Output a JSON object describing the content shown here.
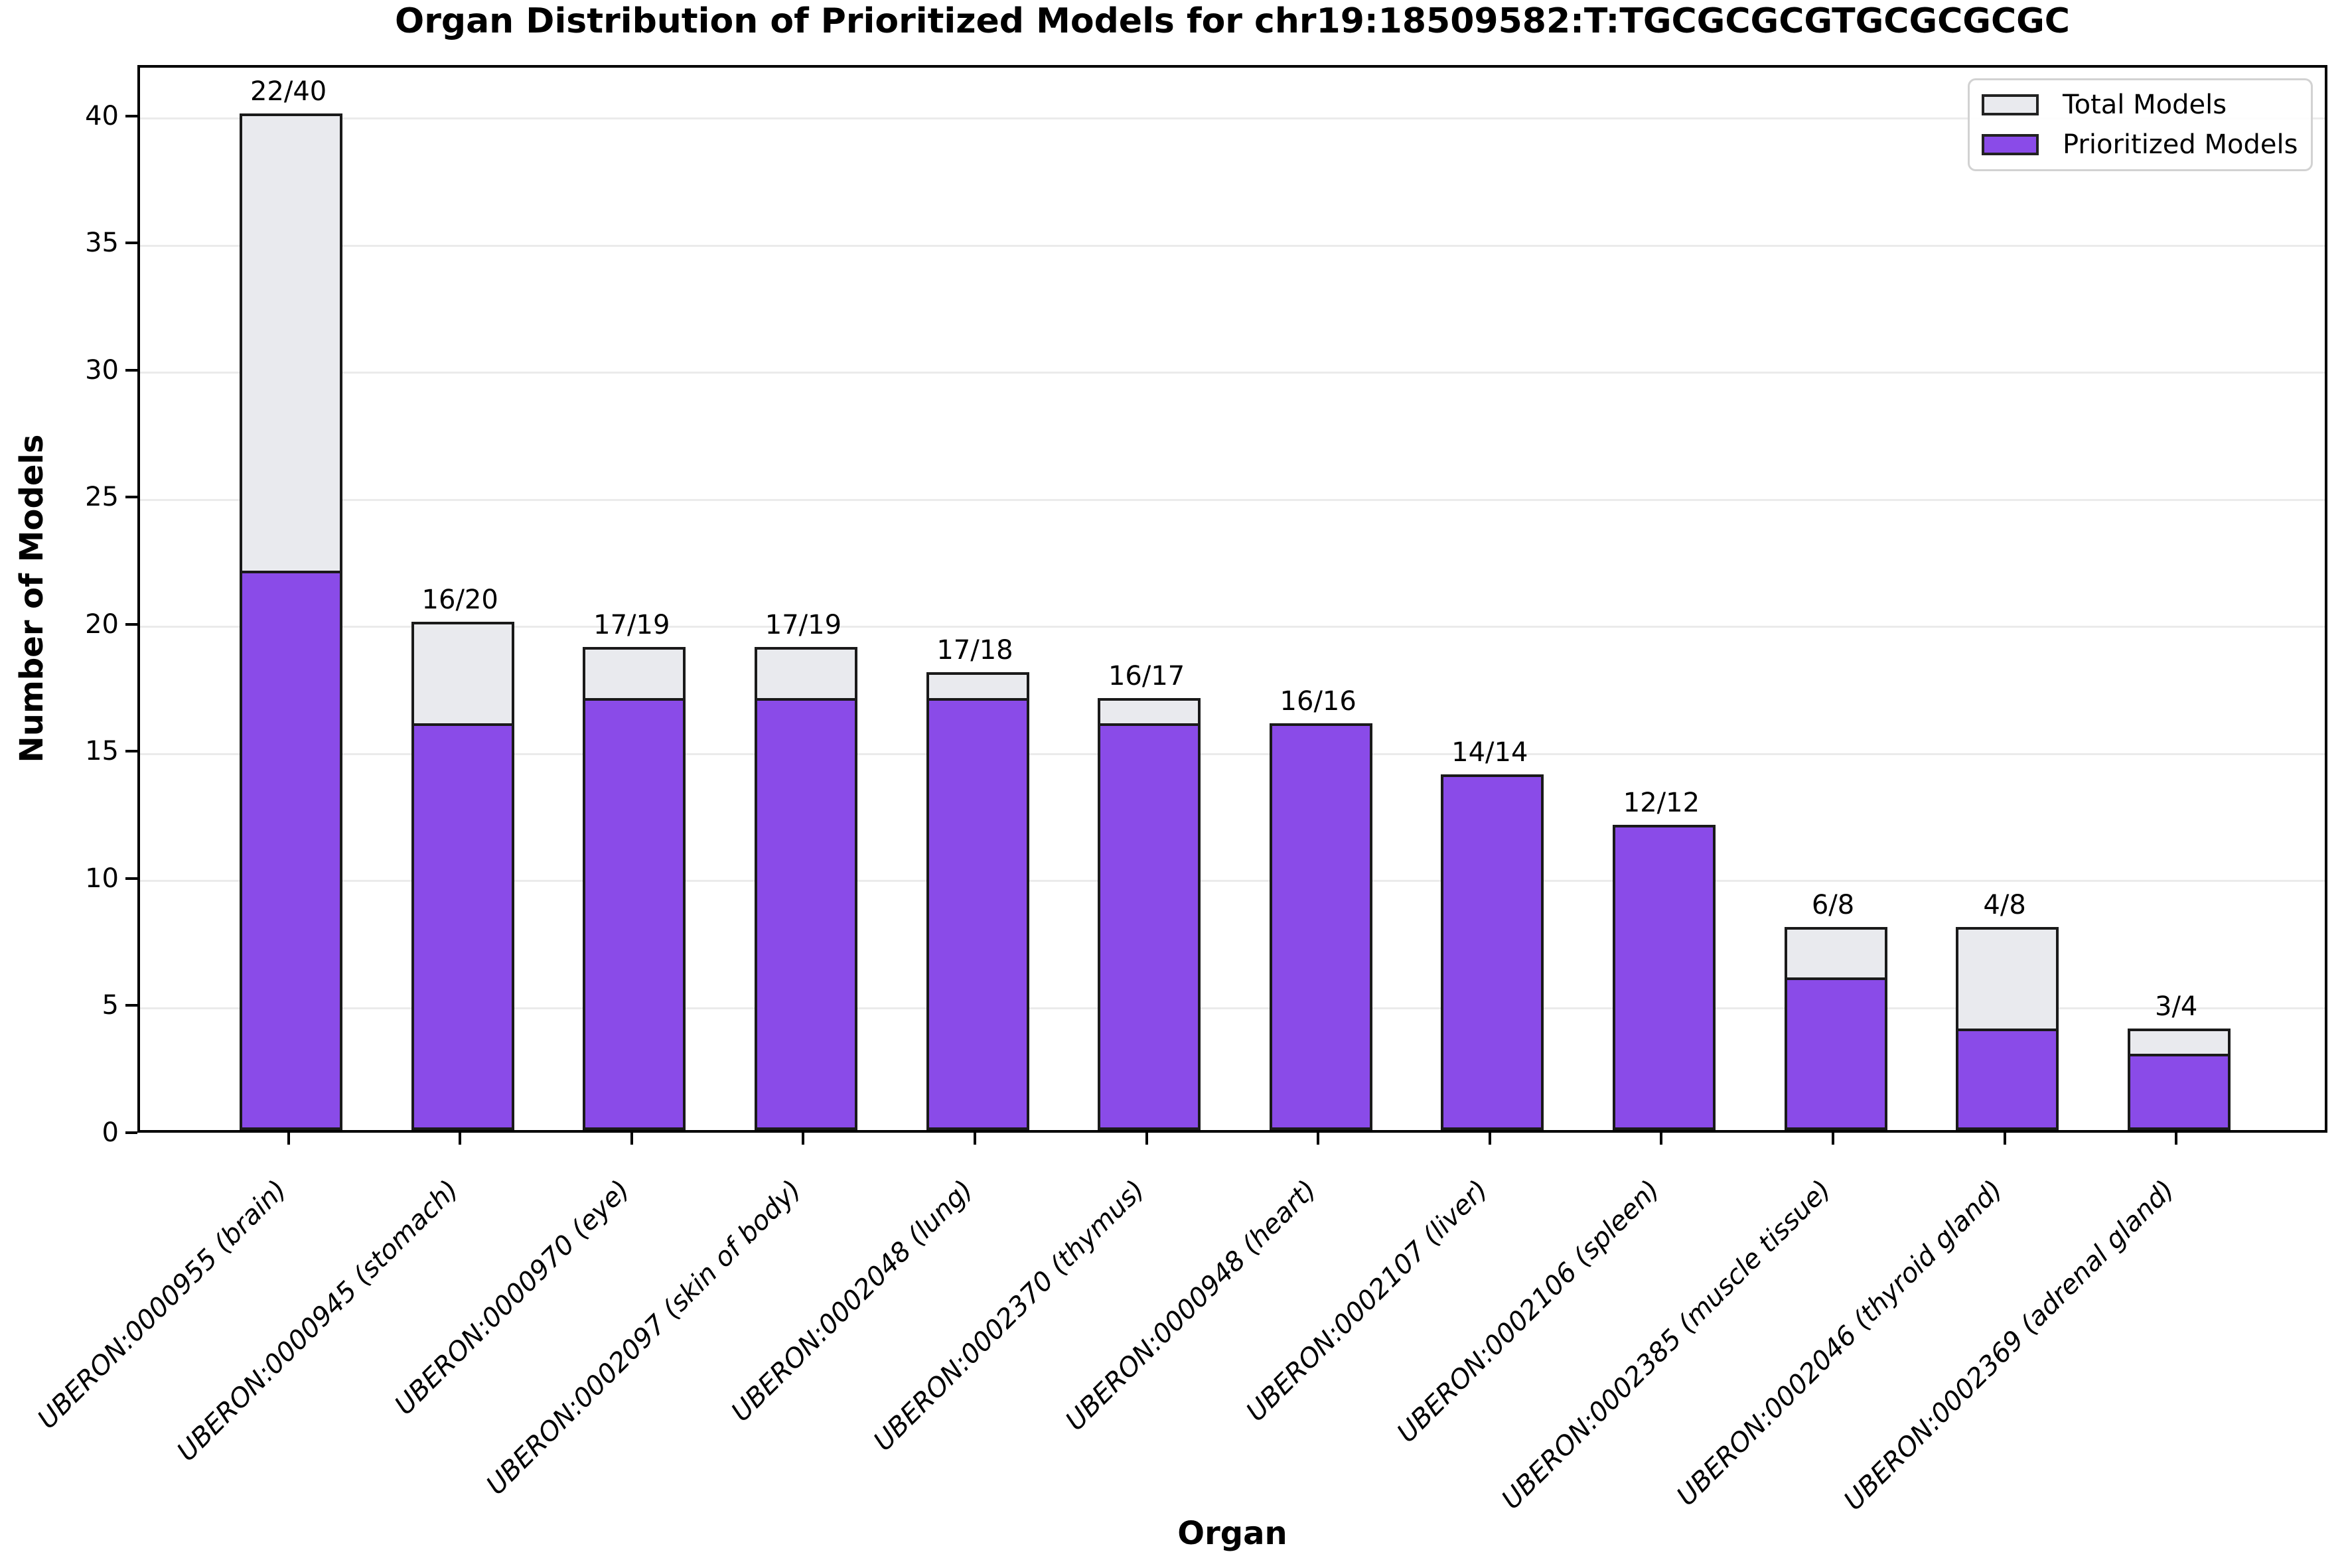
{
  "chart_data": {
    "type": "bar",
    "title": "Organ Distribution of Prioritized Models for chr19:18509582:T:TGCGCGCGTGCGCGCGC",
    "xlabel": "Organ",
    "ylabel": "Number of Models",
    "ylim": [
      0,
      42
    ],
    "yticks": [
      0,
      5,
      10,
      15,
      20,
      25,
      30,
      35,
      40
    ],
    "grid": "horizontal-light",
    "legend_position": "upper-right",
    "categories": [
      "UBERON:0000955 (brain)",
      "UBERON:0000945 (stomach)",
      "UBERON:0000970 (eye)",
      "UBERON:0002097 (skin of body)",
      "UBERON:0002048 (lung)",
      "UBERON:0002370 (thymus)",
      "UBERON:0000948 (heart)",
      "UBERON:0002107 (liver)",
      "UBERON:0002106 (spleen)",
      "UBERON:0002385 (muscle tissue)",
      "UBERON:0002046 (thyroid gland)",
      "UBERON:0002369 (adrenal gland)"
    ],
    "series": [
      {
        "name": "Total Models",
        "color": "#E9EAEE",
        "values": [
          40,
          20,
          19,
          19,
          18,
          17,
          16,
          14,
          12,
          8,
          8,
          4
        ]
      },
      {
        "name": "Prioritized Models",
        "color": "#8A4BE8",
        "values": [
          22,
          16,
          17,
          17,
          17,
          16,
          16,
          14,
          12,
          6,
          4,
          3
        ]
      }
    ],
    "bar_labels": [
      "22/40",
      "16/20",
      "17/19",
      "17/19",
      "17/18",
      "16/17",
      "16/16",
      "14/14",
      "12/12",
      "6/8",
      "4/8",
      "3/4"
    ]
  },
  "style": {
    "bar_edge": "#1A1A1A",
    "grid_color": "#EBEBEB",
    "axis_color": "#000000",
    "background": "#FFFFFF"
  }
}
